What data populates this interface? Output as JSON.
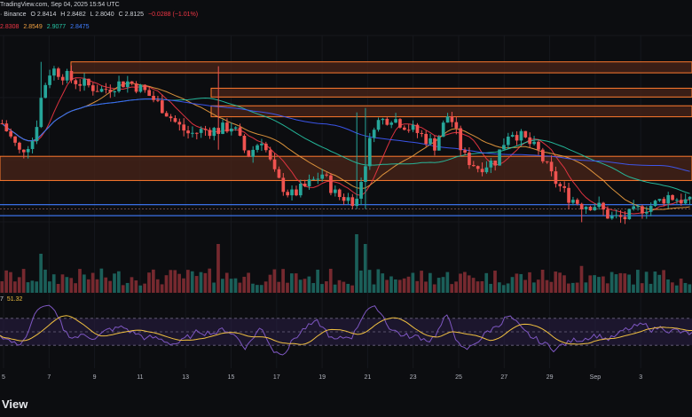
{
  "header": {
    "line1": "TradingView.com, Sep 04, 2025 15:54 UTC",
    "exchange": "· Binance",
    "open": "O 2.8414",
    "high": "H 2.8482",
    "low": "L 2.8040",
    "close": "C 2.8125",
    "change": "−0.0288 (−1.01%)",
    "ma_red": "2.8308",
    "ma_orange": "2.8549",
    "ma_teal": "2.9077",
    "ma_blue": "2.8475"
  },
  "rsi": {
    "prefix": "7",
    "value": "51.32"
  },
  "brand": "View",
  "colors": {
    "bull": "#26a69a",
    "bear": "#ef5350",
    "zone_fill": "#4a2418",
    "zone_border": "#ff7a2e",
    "support": "#3f7dff",
    "ma_red": "#f23645",
    "ma_orange": "#f0a040",
    "ma_teal": "#26c6a6",
    "ma_blue": "#3f5cff",
    "rsi_line": "#7e57c2",
    "rsi_ma": "#f0c040"
  },
  "chart_data": {
    "type": "candlestick",
    "x_ticks": [
      "5",
      "7",
      "9",
      "11",
      "13",
      "15",
      "17",
      "19",
      "21",
      "23",
      "25",
      "27",
      "29",
      "Sep",
      "3"
    ],
    "price_range": [
      2.4,
      3.45
    ],
    "zones": [
      {
        "low": 3.28,
        "high": 3.33
      },
      {
        "low": 3.17,
        "high": 3.21
      },
      {
        "low": 3.08,
        "high": 3.13
      },
      {
        "low": 2.79,
        "high": 2.9
      }
    ],
    "support_lines": [
      2.68,
      2.66,
      2.63
    ],
    "rsi_range": [
      0,
      100
    ],
    "rsi_levels": [
      70,
      30
    ]
  }
}
